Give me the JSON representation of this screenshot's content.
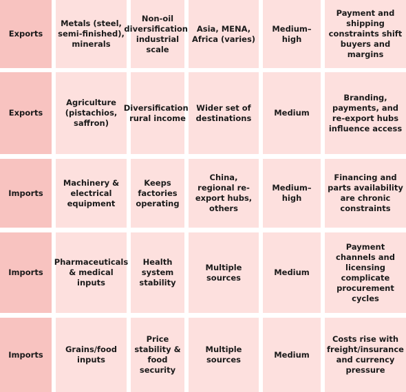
{
  "rows": [
    {
      "flow": "Exports",
      "category": "Metals (steel, semi-finished), minerals",
      "role": "Non-oil diversification; industrial scale",
      "destinations": "Asia, MENA, Africa (varies)",
      "dependence": "Medium–high",
      "notes": "Payment and shipping constraints shift buyers and margins"
    },
    {
      "flow": "Exports",
      "category": "Agriculture (pistachios, saffron)",
      "role": "Diversification; rural income",
      "destinations": "Wider set of destinations",
      "dependence": "Medium",
      "notes": "Branding, payments, and re-export hubs influence access"
    },
    {
      "flow": "Imports",
      "category": "Machinery & electrical equipment",
      "role": "Keeps factories operating",
      "destinations": "China, regional re-export hubs, others",
      "dependence": "Medium–high",
      "notes": "Financing and parts availability are chronic constraints"
    },
    {
      "flow": "Imports",
      "category": "Pharmaceuticals & medical inputs",
      "role": "Health system stability",
      "destinations": "Multiple sources",
      "dependence": "Medium",
      "notes": "Payment channels and licensing complicate procurement cycles"
    },
    {
      "flow": "Imports",
      "category": "Grains/food inputs",
      "role": "Price stability & food security",
      "destinations": "Multiple sources",
      "dependence": "Medium",
      "notes": "Costs rise with freight/insurance and currency pressure"
    }
  ]
}
